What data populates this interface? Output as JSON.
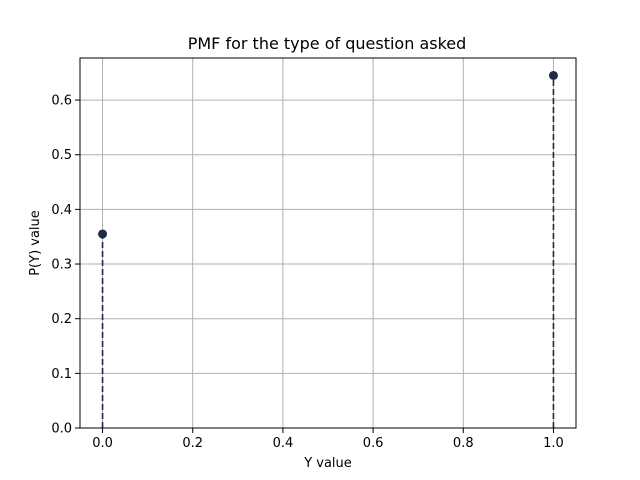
{
  "chart_data": {
    "type": "scatter",
    "title": "PMF for the type of question asked",
    "xlabel": "Y value",
    "ylabel": "P(Y) value",
    "x": [
      0.0,
      1.0
    ],
    "values": [
      0.355,
      0.645
    ],
    "xlim": [
      -0.05,
      1.05
    ],
    "ylim": [
      0.0,
      0.677
    ],
    "xticks": [
      0.0,
      0.2,
      0.4,
      0.6,
      0.8,
      1.0
    ],
    "xtick_labels": [
      "0.0",
      "0.2",
      "0.4",
      "0.6",
      "0.8",
      "1.0"
    ],
    "yticks": [
      0.0,
      0.1,
      0.2,
      0.3,
      0.4,
      0.5,
      0.6
    ],
    "ytick_labels": [
      "0.0",
      "0.1",
      "0.2",
      "0.3",
      "0.4",
      "0.5",
      "0.6"
    ],
    "grid": true,
    "marker_color": "#1f2a44",
    "stem_style": "dashed",
    "grid_color": "#b0b0b0"
  }
}
